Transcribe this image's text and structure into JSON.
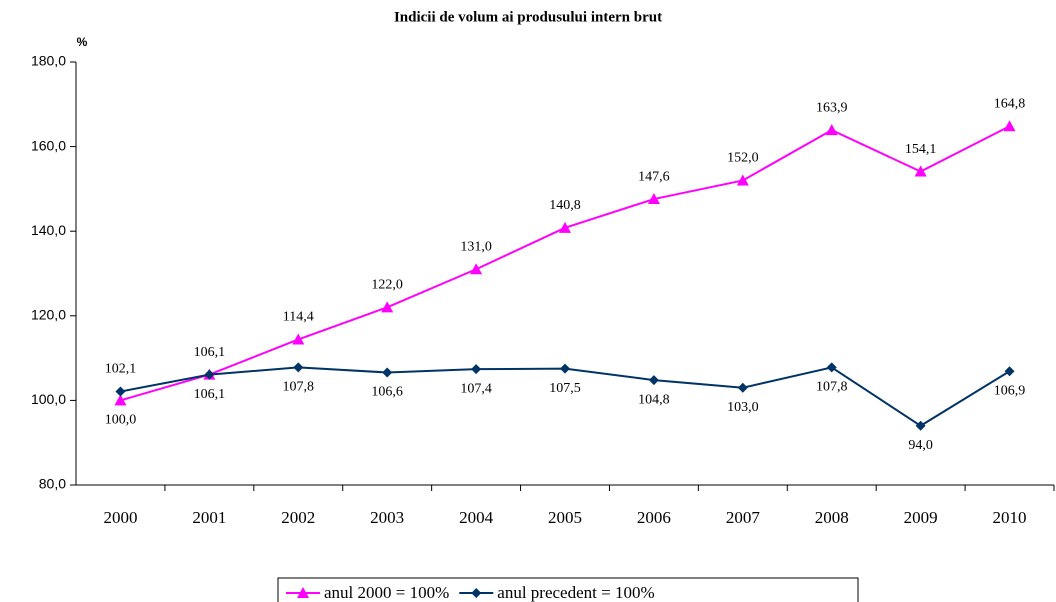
{
  "chart_data": {
    "type": "line",
    "title": "Indicii de volum ai produsului intern brut",
    "y_label": "%",
    "categories": [
      "2000",
      "2001",
      "2002",
      "2003",
      "2004",
      "2005",
      "2006",
      "2007",
      "2008",
      "2009",
      "2010"
    ],
    "ylim": [
      80,
      180
    ],
    "yticks": [
      {
        "value": 80,
        "label": "80,0"
      },
      {
        "value": 100,
        "label": "100,0"
      },
      {
        "value": 120,
        "label": "120,0"
      },
      {
        "value": 140,
        "label": "140,0"
      },
      {
        "value": 160,
        "label": "160,0"
      },
      {
        "value": 180,
        "label": "180,0"
      }
    ],
    "series": [
      {
        "name": "anul 2000 = 100%",
        "color": "#ff00ff",
        "marker": "triangle",
        "values": [
          100,
          106.1,
          114.4,
          122,
          131,
          140.8,
          147.6,
          152,
          163.9,
          154.1,
          164.8
        ],
        "value_labels": [
          "100,0",
          "106,1",
          "114,4",
          "122,0",
          "131,0",
          "140,8",
          "147,6",
          "152,0",
          "163,9",
          "154,1",
          "164,8"
        ]
      },
      {
        "name": "anul precedent = 100%",
        "color": "#003366",
        "marker": "diamond",
        "values": [
          102.1,
          106.1,
          107.8,
          106.6,
          107.4,
          107.5,
          104.8,
          103,
          107.8,
          94,
          106.9
        ],
        "value_labels": [
          "102,1",
          "106,1",
          "107,8",
          "106,6",
          "107,4",
          "107,5",
          "104,8",
          "103,0",
          "107,8",
          "94,0",
          "106,9"
        ]
      }
    ],
    "legend": "bottom"
  }
}
